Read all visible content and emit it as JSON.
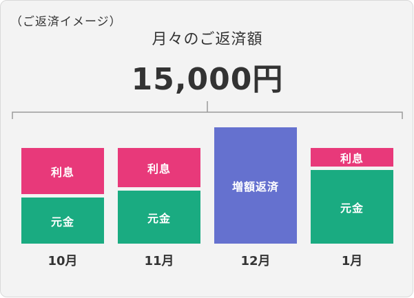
{
  "header": {
    "note": "（ご返済イメージ）",
    "subtitle": "月々のご返済額",
    "amount": "15,000円"
  },
  "colors": {
    "interest": "#e8397a",
    "principal": "#1aab81",
    "extra": "#6571cf",
    "background": "#f3f3f3"
  },
  "months": [
    {
      "label": "10月",
      "segments": [
        {
          "label": "利息",
          "kind": "interest"
        },
        {
          "label": "元金",
          "kind": "principal"
        }
      ]
    },
    {
      "label": "11月",
      "segments": [
        {
          "label": "利息",
          "kind": "interest"
        },
        {
          "label": "元金",
          "kind": "principal"
        }
      ]
    },
    {
      "label": "12月",
      "segments": [
        {
          "label": "増額返済",
          "kind": "extra"
        }
      ]
    },
    {
      "label": "1月",
      "segments": [
        {
          "label": "利息",
          "kind": "interest"
        },
        {
          "label": "元金",
          "kind": "principal"
        }
      ]
    }
  ]
}
